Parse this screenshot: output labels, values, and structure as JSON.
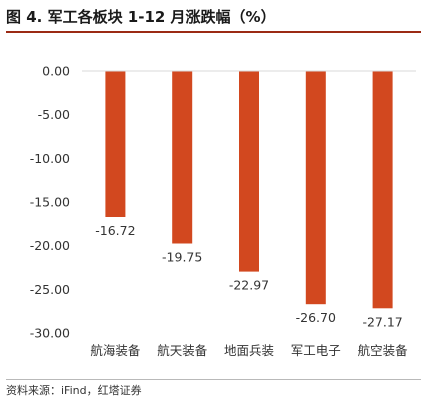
{
  "header": {
    "title": "图 4. 军工各板块 1-12 月涨跌幅（%）"
  },
  "footer": {
    "source": "资料来源：iFind，红塔证券"
  },
  "colors": {
    "bar": "#d2481f",
    "title_rule": "#9b2a14",
    "axis": "#d9d9d9"
  },
  "chart_data": {
    "type": "bar",
    "title": "",
    "xlabel": "",
    "ylabel": "",
    "categories": [
      "航海装备",
      "航天装备",
      "地面兵装",
      "军工电子",
      "航空装备"
    ],
    "values": [
      -16.72,
      -19.75,
      -22.97,
      -26.7,
      -27.17
    ],
    "data_labels": [
      "-16.72",
      "-19.75",
      "-22.97",
      "-26.70",
      "-27.17"
    ],
    "ylim": [
      -30,
      0
    ],
    "yticks": [
      0,
      -5,
      -10,
      -15,
      -20,
      -25,
      -30
    ],
    "ytick_labels": [
      "0.00",
      "-5.00",
      "-10.00",
      "-15.00",
      "-20.00",
      "-25.00",
      "-30.00"
    ],
    "grid": false,
    "legend": "none"
  }
}
